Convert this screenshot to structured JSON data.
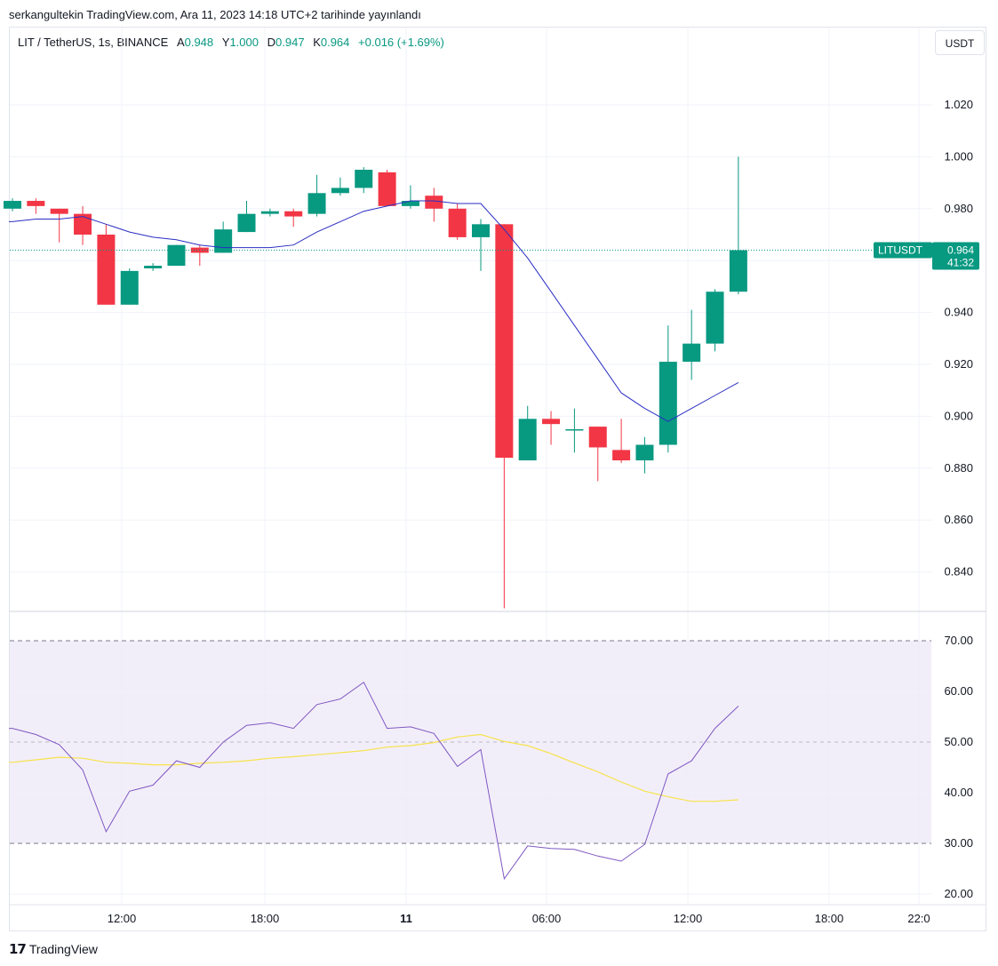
{
  "published": "serkangultekin TradingView.com, Ara 11, 2023 14:18 UTC+2 tarihinde yayınlandı",
  "legend": {
    "symbol": "LIT / TetherUS, 1s, BINANCE",
    "open_label": "A",
    "open": "0.948",
    "high_label": "Y",
    "high": "1.000",
    "low_label": "D",
    "low": "0.947",
    "close_label": "K",
    "close": "0.964",
    "change": "+0.016 (+1.69%)"
  },
  "currency_button": "USDT",
  "footer_brand": "TradingView",
  "price_tag": {
    "symbol": "LITUSDT",
    "price": "0.964",
    "countdown": "41:32"
  },
  "colors": {
    "up": "#089981",
    "down": "#f23645",
    "ma": "#2a2ec3",
    "rsi": "#7e57c2",
    "rsi_ma": "#f7e24b",
    "rsi_band": "#ede7f6"
  },
  "chart_data": [
    {
      "type": "candlestick",
      "x_ticks": [
        "12:00",
        "18:00",
        "11",
        "06:00",
        "12:00",
        "18:00",
        "22:0"
      ],
      "y_ticks": [
        "1.020",
        "1.000",
        "0.980",
        "0.960",
        "0.940",
        "0.920",
        "0.900",
        "0.880",
        "0.860",
        "0.840"
      ],
      "ylim": [
        0.826,
        1.04
      ],
      "last_price": 0.964,
      "candles": [
        {
          "o": 0.98,
          "h": 0.984,
          "l": 0.979,
          "c": 0.983
        },
        {
          "o": 0.983,
          "h": 0.984,
          "l": 0.978,
          "c": 0.981
        },
        {
          "o": 0.98,
          "h": 0.98,
          "l": 0.967,
          "c": 0.978
        },
        {
          "o": 0.978,
          "h": 0.981,
          "l": 0.966,
          "c": 0.97
        },
        {
          "o": 0.97,
          "h": 0.974,
          "l": 0.943,
          "c": 0.943
        },
        {
          "o": 0.943,
          "h": 0.957,
          "l": 0.943,
          "c": 0.956
        },
        {
          "o": 0.957,
          "h": 0.959,
          "l": 0.956,
          "c": 0.958
        },
        {
          "o": 0.958,
          "h": 0.966,
          "l": 0.958,
          "c": 0.966
        },
        {
          "o": 0.965,
          "h": 0.966,
          "l": 0.958,
          "c": 0.963
        },
        {
          "o": 0.963,
          "h": 0.975,
          "l": 0.963,
          "c": 0.972
        },
        {
          "o": 0.971,
          "h": 0.983,
          "l": 0.971,
          "c": 0.978
        },
        {
          "o": 0.978,
          "h": 0.98,
          "l": 0.977,
          "c": 0.979
        },
        {
          "o": 0.979,
          "h": 0.98,
          "l": 0.973,
          "c": 0.977
        },
        {
          "o": 0.978,
          "h": 0.993,
          "l": 0.977,
          "c": 0.986
        },
        {
          "o": 0.986,
          "h": 0.992,
          "l": 0.985,
          "c": 0.988
        },
        {
          "o": 0.988,
          "h": 0.996,
          "l": 0.986,
          "c": 0.995
        },
        {
          "o": 0.994,
          "h": 0.995,
          "l": 0.981,
          "c": 0.981
        },
        {
          "o": 0.981,
          "h": 0.989,
          "l": 0.98,
          "c": 0.983
        },
        {
          "o": 0.985,
          "h": 0.988,
          "l": 0.975,
          "c": 0.98
        },
        {
          "o": 0.98,
          "h": 0.982,
          "l": 0.968,
          "c": 0.969
        },
        {
          "o": 0.969,
          "h": 0.976,
          "l": 0.956,
          "c": 0.974
        },
        {
          "o": 0.974,
          "h": 0.974,
          "l": 0.826,
          "c": 0.884
        },
        {
          "o": 0.883,
          "h": 0.904,
          "l": 0.883,
          "c": 0.899
        },
        {
          "o": 0.899,
          "h": 0.902,
          "l": 0.889,
          "c": 0.897
        },
        {
          "o": 0.895,
          "h": 0.903,
          "l": 0.886,
          "c": 0.895
        },
        {
          "o": 0.896,
          "h": 0.896,
          "l": 0.875,
          "c": 0.888
        },
        {
          "o": 0.887,
          "h": 0.899,
          "l": 0.882,
          "c": 0.883
        },
        {
          "o": 0.883,
          "h": 0.892,
          "l": 0.878,
          "c": 0.889
        },
        {
          "o": 0.889,
          "h": 0.935,
          "l": 0.886,
          "c": 0.921
        },
        {
          "o": 0.921,
          "h": 0.941,
          "l": 0.914,
          "c": 0.928
        },
        {
          "o": 0.928,
          "h": 0.949,
          "l": 0.925,
          "c": 0.948
        },
        {
          "o": 0.948,
          "h": 1.0,
          "l": 0.947,
          "c": 0.964
        }
      ],
      "moving_average": [
        0.975,
        0.976,
        0.976,
        0.977,
        0.974,
        0.971,
        0.969,
        0.968,
        0.966,
        0.965,
        0.965,
        0.965,
        0.966,
        0.971,
        0.975,
        0.979,
        0.981,
        0.983,
        0.983,
        0.982,
        0.982,
        0.972,
        0.961,
        0.948,
        0.935,
        0.922,
        0.909,
        0.903,
        0.898,
        0.903,
        0.908,
        0.913
      ]
    },
    {
      "type": "line",
      "y_ticks": [
        "70.00",
        "60.00",
        "50.00",
        "40.00",
        "30.00",
        "20.00"
      ],
      "ylim": [
        18,
        75
      ],
      "band": [
        30,
        70
      ],
      "midline": 50,
      "series": [
        {
          "values": [
            52.7,
            51.5,
            49.5,
            44.5,
            32.3,
            40.3,
            41.5,
            46.3,
            45.0,
            50.0,
            53.3,
            53.8,
            52.7,
            57.4,
            58.5,
            61.8,
            52.7,
            53.0,
            51.7,
            45.2,
            48.5,
            23.0,
            29.5,
            29.0,
            28.8,
            27.5,
            26.5,
            29.8,
            43.7,
            46.3,
            52.7,
            57.1
          ]
        },
        {
          "values": [
            46.0,
            46.5,
            47.0,
            46.8,
            46.0,
            45.8,
            45.5,
            45.5,
            45.8,
            46.0,
            46.3,
            46.8,
            47.1,
            47.5,
            47.9,
            48.3,
            49.0,
            49.3,
            49.9,
            51.0,
            51.5,
            50.1,
            49.3,
            47.7,
            45.9,
            44.1,
            42.1,
            40.3,
            39.2,
            38.3,
            38.3,
            38.6
          ]
        }
      ]
    }
  ]
}
